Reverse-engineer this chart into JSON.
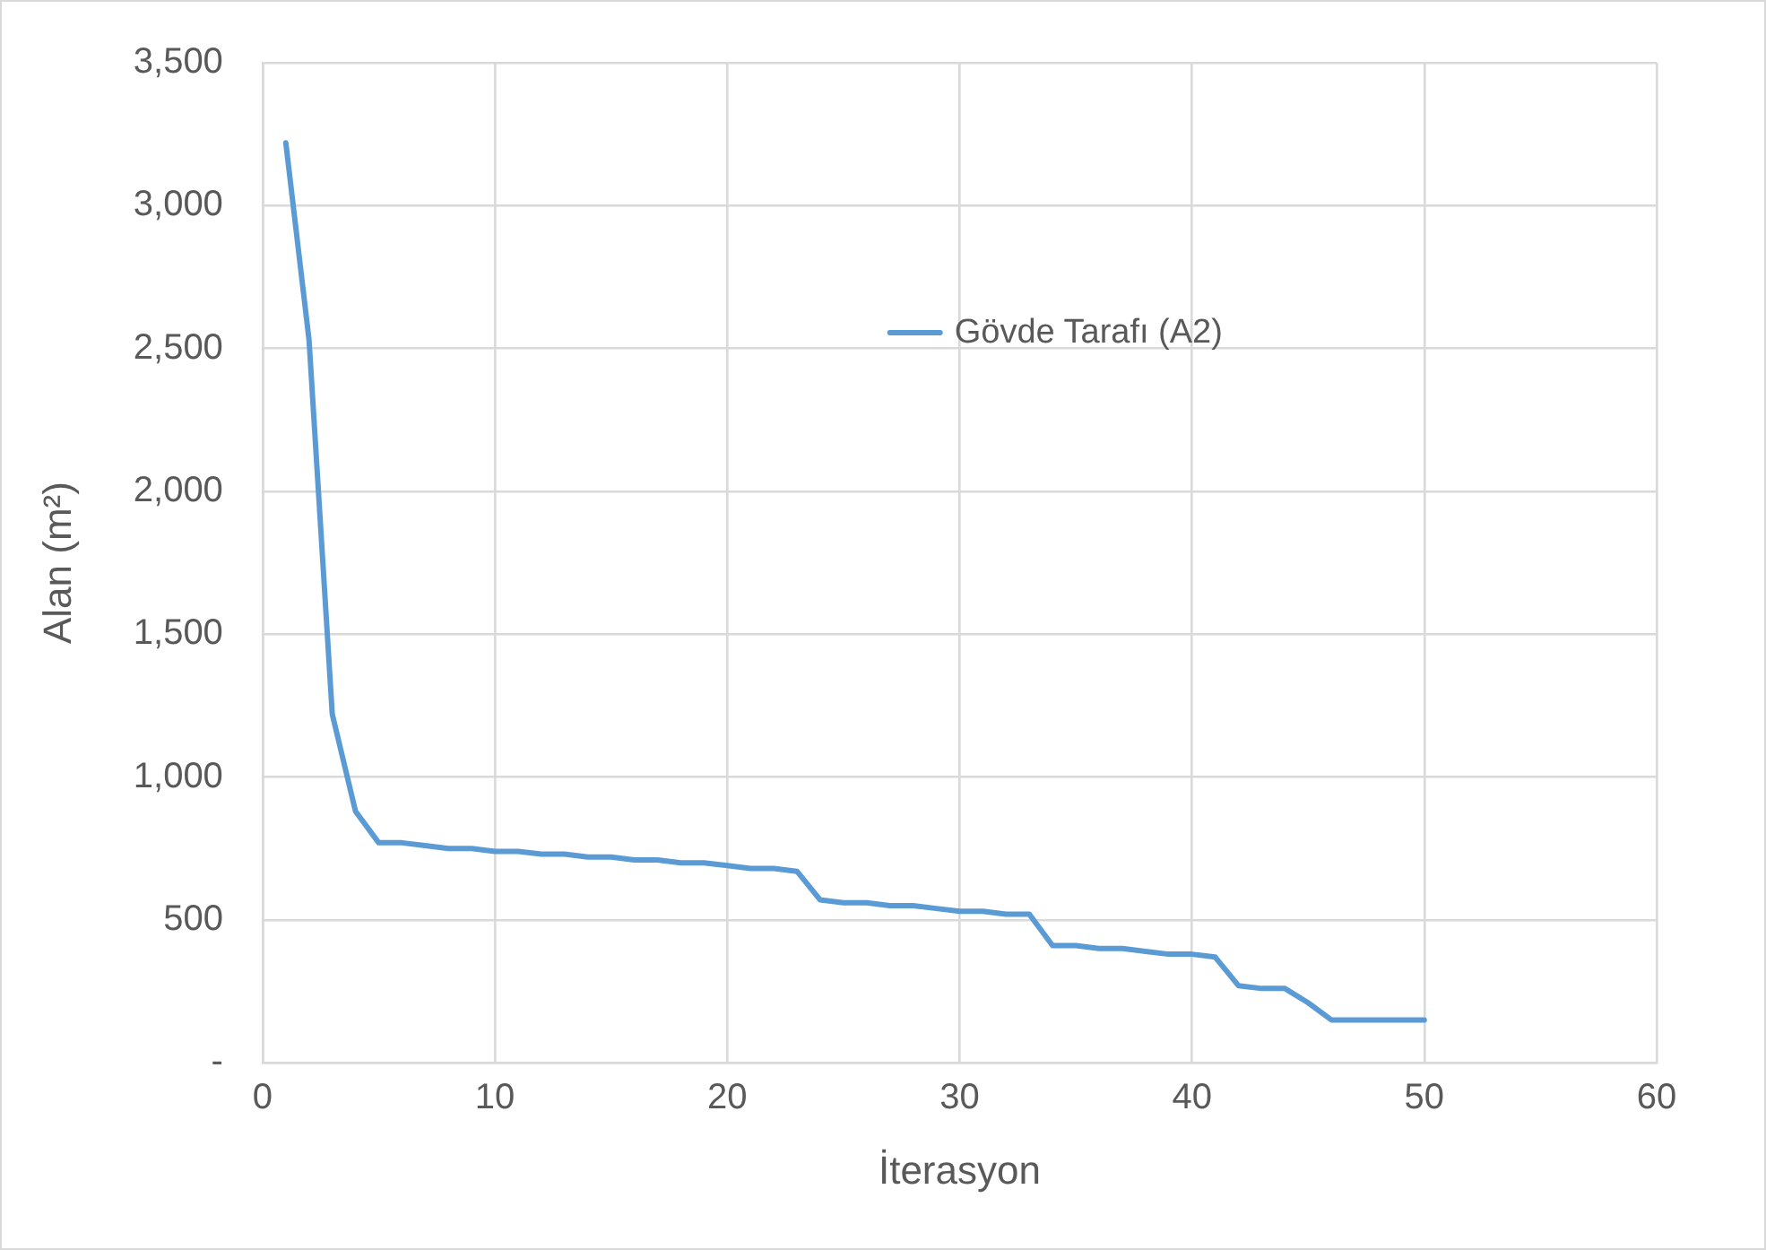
{
  "chart_data": {
    "type": "line",
    "xlabel": "İterasyon",
    "ylabel": "Alan (m²)",
    "x": [
      1,
      2,
      3,
      4,
      5,
      6,
      7,
      8,
      9,
      10,
      11,
      12,
      13,
      14,
      15,
      16,
      17,
      18,
      19,
      20,
      21,
      22,
      23,
      24,
      25,
      26,
      27,
      28,
      29,
      30,
      31,
      32,
      33,
      34,
      35,
      36,
      37,
      38,
      39,
      40,
      41,
      42,
      43,
      44,
      45,
      46,
      47,
      48,
      49,
      50
    ],
    "series": [
      {
        "name": "Gövde Tarafı (A2)",
        "color": "#5b9bd5",
        "values": [
          3220,
          2530,
          1220,
          880,
          770,
          770,
          760,
          750,
          750,
          740,
          740,
          730,
          730,
          720,
          720,
          710,
          710,
          700,
          700,
          690,
          680,
          680,
          670,
          570,
          560,
          560,
          550,
          550,
          540,
          530,
          530,
          520,
          520,
          410,
          410,
          400,
          400,
          390,
          380,
          380,
          370,
          270,
          260,
          260,
          210,
          150,
          150,
          150,
          150,
          150
        ]
      }
    ],
    "xlim": [
      0,
      60
    ],
    "xticks": [
      0,
      10,
      20,
      30,
      40,
      50,
      60
    ],
    "ylim": [
      0,
      3500
    ],
    "yticks": [
      {
        "value": 0,
        "label": "-"
      },
      {
        "value": 500,
        "label": "500"
      },
      {
        "value": 1000,
        "label": "1,000"
      },
      {
        "value": 1500,
        "label": "1,500"
      },
      {
        "value": 2000,
        "label": "2,000"
      },
      {
        "value": 2500,
        "label": "2,500"
      },
      {
        "value": 3000,
        "label": "3,000"
      },
      {
        "value": 3500,
        "label": "3,500"
      }
    ],
    "grid": true,
    "legend": "top right",
    "marker": "none",
    "line_style": "solid"
  }
}
